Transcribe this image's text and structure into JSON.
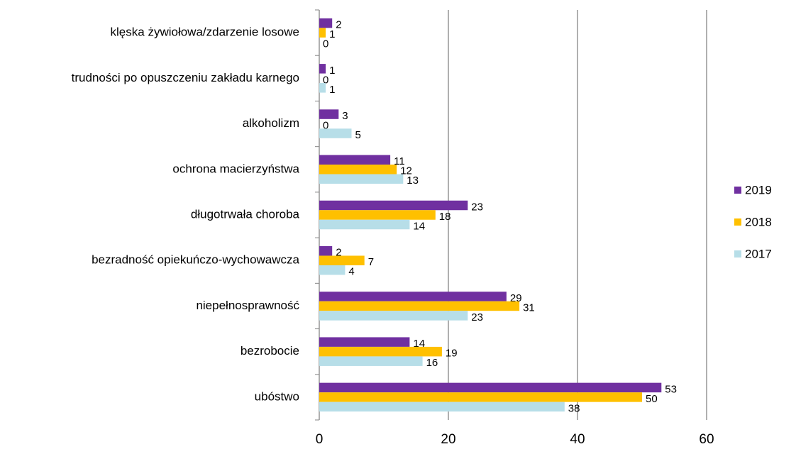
{
  "chart_data": {
    "type": "bar",
    "orientation": "horizontal",
    "categories": [
      "klęska żywiołowa/zdarzenie losowe",
      "trudności po opuszczeniu zakładu karnego",
      "alkoholizm",
      "ochrona macierzyństwa",
      "długotrwała choroba",
      "bezradność opiekuńczo-wychowawcza",
      "niepełnosprawność",
      "bezrobocie",
      "ubóstwo"
    ],
    "series": [
      {
        "name": "2019",
        "color": "#7030a0",
        "values": [
          2,
          1,
          3,
          11,
          23,
          2,
          29,
          14,
          53
        ]
      },
      {
        "name": "2018",
        "color": "#ffc000",
        "values": [
          1,
          0,
          0,
          12,
          18,
          7,
          31,
          19,
          50
        ]
      },
      {
        "name": "2017",
        "color": "#b7dee8",
        "values": [
          0,
          1,
          5,
          13,
          14,
          4,
          23,
          16,
          38
        ]
      }
    ],
    "xlim": [
      0,
      60
    ],
    "xticks": [
      0,
      20,
      40,
      60
    ],
    "grid": true,
    "legend": "right"
  }
}
